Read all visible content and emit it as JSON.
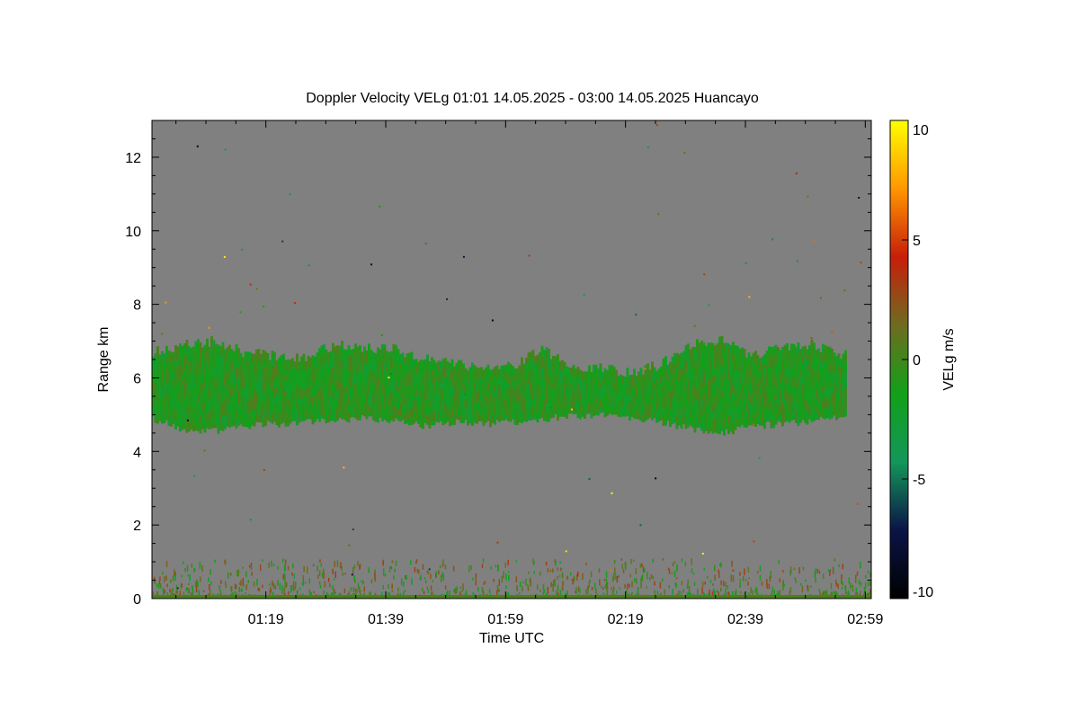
{
  "chart_data": {
    "type": "heatmap",
    "title": "Doppler Velocity VELg   01:01 14.05.2025 - 03:00 14.05.2025 Huancayo",
    "xlabel": "Time UTC",
    "ylabel": "Range km",
    "x_ticks": [
      "01:19",
      "01:39",
      "01:59",
      "02:19",
      "02:39",
      "02:59"
    ],
    "x_tick_minutes": [
      19,
      39,
      59,
      79,
      99,
      119
    ],
    "xlim_minutes": [
      0,
      120
    ],
    "y_ticks": [
      "0",
      "2",
      "4",
      "6",
      "8",
      "10",
      "12"
    ],
    "y_tick_values": [
      0,
      2,
      4,
      6,
      8,
      10,
      12
    ],
    "ylim": [
      0,
      13
    ],
    "colorbar": {
      "label": "VELg m/s",
      "ticks": [
        "10",
        "5",
        "0",
        "-5",
        "-10"
      ],
      "tick_values": [
        10,
        5,
        0,
        -5,
        -10
      ],
      "range": [
        -10,
        10
      ],
      "colors": [
        "#000000",
        "#0a1446",
        "#14965a",
        "#12a019",
        "#6e6c20",
        "#c81e0a",
        "#ff9600",
        "#ffff00"
      ]
    },
    "background_color": "#808080",
    "cloud_layer": {
      "times_minutes": [
        0,
        5,
        10,
        15,
        20,
        25,
        30,
        35,
        40,
        45,
        50,
        55,
        60,
        65,
        70,
        75,
        80,
        85,
        90,
        95,
        100,
        105,
        110,
        115
      ],
      "base_km": [
        4.9,
        4.6,
        4.55,
        4.7,
        4.75,
        4.8,
        4.85,
        4.9,
        4.85,
        4.7,
        4.8,
        4.75,
        4.8,
        4.9,
        4.95,
        5.0,
        4.9,
        4.8,
        4.6,
        4.5,
        4.7,
        4.75,
        4.8,
        5.0
      ],
      "top_km": [
        6.7,
        6.9,
        7.0,
        6.7,
        6.6,
        6.5,
        6.9,
        6.8,
        6.8,
        6.5,
        6.4,
        6.2,
        6.3,
        6.8,
        6.3,
        6.3,
        6.1,
        6.4,
        6.9,
        7.0,
        6.6,
        6.8,
        6.9,
        6.6
      ],
      "mean_velocity_ms": -1.5
    },
    "surface_clutter_top_km": 1.0
  }
}
